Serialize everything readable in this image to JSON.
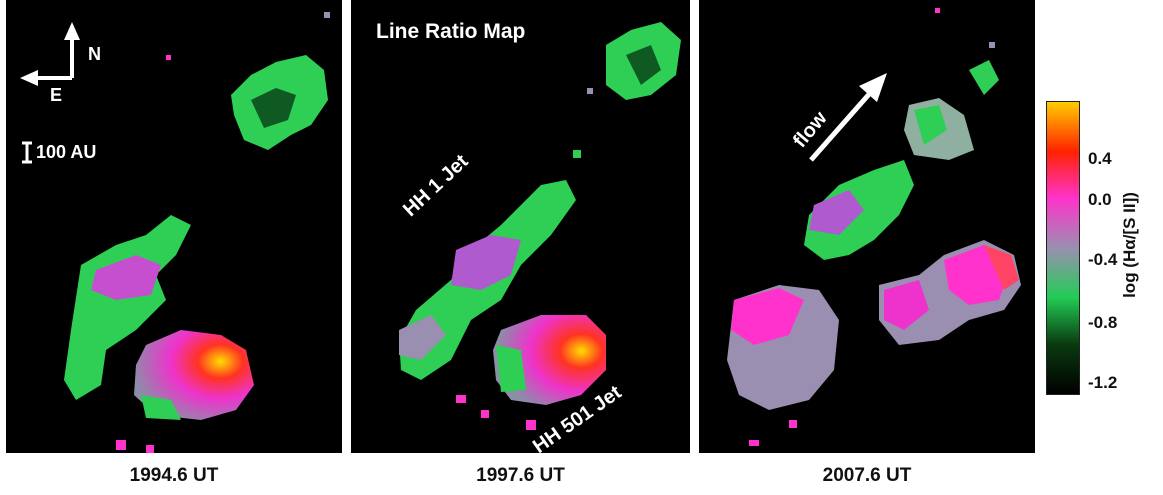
{
  "figure": {
    "panels": [
      {
        "caption": "1994.6 UT"
      },
      {
        "caption": "1997.6 UT"
      },
      {
        "caption": "2007.6 UT"
      }
    ],
    "labels": {
      "north": "N",
      "east": "E",
      "scale_bar": "100 AU",
      "map_title": "Line Ratio Map",
      "hh1_jet": "HH 1 Jet",
      "hh501_jet": "HH 501 Jet",
      "flow": "flow"
    },
    "colorbar": {
      "title": "log (Hα/[S II])",
      "ticks": [
        "0.4",
        "0.0",
        "-0.4",
        "-0.8",
        "-1.2"
      ],
      "colors": [
        "#ffcc00",
        "#ff2200",
        "#ff33cc",
        "#9a8fb0",
        "#22cc55",
        "#0a3a10",
        "#000000"
      ]
    }
  }
}
